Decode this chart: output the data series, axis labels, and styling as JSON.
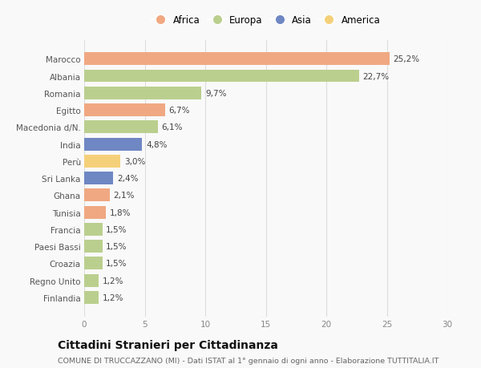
{
  "countries": [
    "Marocco",
    "Albania",
    "Romania",
    "Egitto",
    "Macedonia d/N.",
    "India",
    "Perù",
    "Sri Lanka",
    "Ghana",
    "Tunisia",
    "Francia",
    "Paesi Bassi",
    "Croazia",
    "Regno Unito",
    "Finlandia"
  ],
  "values": [
    25.2,
    22.7,
    9.7,
    6.7,
    6.1,
    4.8,
    3.0,
    2.4,
    2.1,
    1.8,
    1.5,
    1.5,
    1.5,
    1.2,
    1.2
  ],
  "labels": [
    "25,2%",
    "22,7%",
    "9,7%",
    "6,7%",
    "6,1%",
    "4,8%",
    "3,0%",
    "2,4%",
    "2,1%",
    "1,8%",
    "1,5%",
    "1,5%",
    "1,5%",
    "1,2%",
    "1,2%"
  ],
  "continents": [
    "Africa",
    "Europa",
    "Europa",
    "Africa",
    "Europa",
    "Asia",
    "America",
    "Asia",
    "Africa",
    "Africa",
    "Europa",
    "Europa",
    "Europa",
    "Europa",
    "Europa"
  ],
  "colors": {
    "Africa": "#F0A882",
    "Europa": "#BACF8E",
    "Asia": "#6F87C3",
    "America": "#F5D07A"
  },
  "legend_order": [
    "Africa",
    "Europa",
    "Asia",
    "America"
  ],
  "xlim": [
    0,
    30
  ],
  "xticks": [
    0,
    5,
    10,
    15,
    20,
    25,
    30
  ],
  "title": "Cittadini Stranieri per Cittadinanza",
  "subtitle": "COMUNE DI TRUCCAZZANO (MI) - Dati ISTAT al 1° gennaio di ogni anno - Elaborazione TUTTITALIA.IT",
  "background_color": "#f9f9f9",
  "bar_height": 0.75,
  "label_fontsize": 7.5,
  "ytick_fontsize": 7.5,
  "xtick_fontsize": 7.5,
  "title_fontsize": 10,
  "subtitle_fontsize": 6.8
}
